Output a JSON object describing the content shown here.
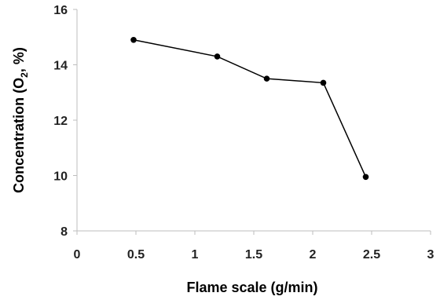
{
  "chart_data": {
    "type": "line",
    "title": "",
    "xlabel": "Flame scale (g/min)",
    "ylabel": {
      "pre": "Concentration (O",
      "sub": "2",
      "post": ", %)"
    },
    "xlim": [
      0,
      3
    ],
    "ylim": [
      8,
      16
    ],
    "xticks": [
      {
        "value": 0,
        "label": "0"
      },
      {
        "value": 0.5,
        "label": "0.5"
      },
      {
        "value": 1,
        "label": "1"
      },
      {
        "value": 1.5,
        "label": "1.5"
      },
      {
        "value": 2,
        "label": "2"
      },
      {
        "value": 2.5,
        "label": "2.5"
      },
      {
        "value": 3,
        "label": "3"
      }
    ],
    "yticks": [
      {
        "value": 8,
        "label": "8"
      },
      {
        "value": 10,
        "label": "10"
      },
      {
        "value": 12,
        "label": "12"
      },
      {
        "value": 14,
        "label": "14"
      },
      {
        "value": 16,
        "label": "16"
      }
    ],
    "grid": false,
    "legend": "none",
    "series": [
      {
        "color": "#000000",
        "x": [
          0.48,
          1.19,
          1.61,
          2.09,
          2.45
        ],
        "y": [
          14.9,
          14.3,
          13.5,
          13.35,
          9.95
        ]
      }
    ]
  }
}
